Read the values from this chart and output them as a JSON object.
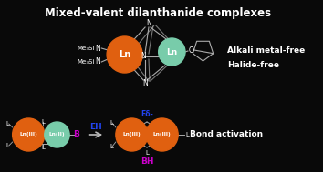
{
  "bg_color": "#090909",
  "title": "Mixed-valent dilanthanide complexes",
  "title_color": "#ffffff",
  "title_fontsize": 8.5,
  "orange_color": "#e06010",
  "teal_color": "#78ccaa",
  "white_text": "#ffffff",
  "blue_text": "#2244ee",
  "magenta_text": "#cc00cc",
  "gray_line": "#aaaaaa",
  "arrow_color": "#bbbbbb",
  "label_alkali": "Alkali metal-free",
  "label_halide": "Halide-free",
  "bond_activation": "Bond activation",
  "eh_label": "EH",
  "bh_label": "BH",
  "ez_label": "Eδ-",
  "b_label": "B",
  "ln3_label": "Ln(III)",
  "ln2_label": "Ln(II)",
  "ln_label": "Ln",
  "n_label": "N",
  "o_label": "O",
  "me3si_1": "Me₃Si",
  "me3si_2": "Me₃Si",
  "l_label": "L",
  "figw": 3.54,
  "figh": 1.89,
  "dpi": 100
}
